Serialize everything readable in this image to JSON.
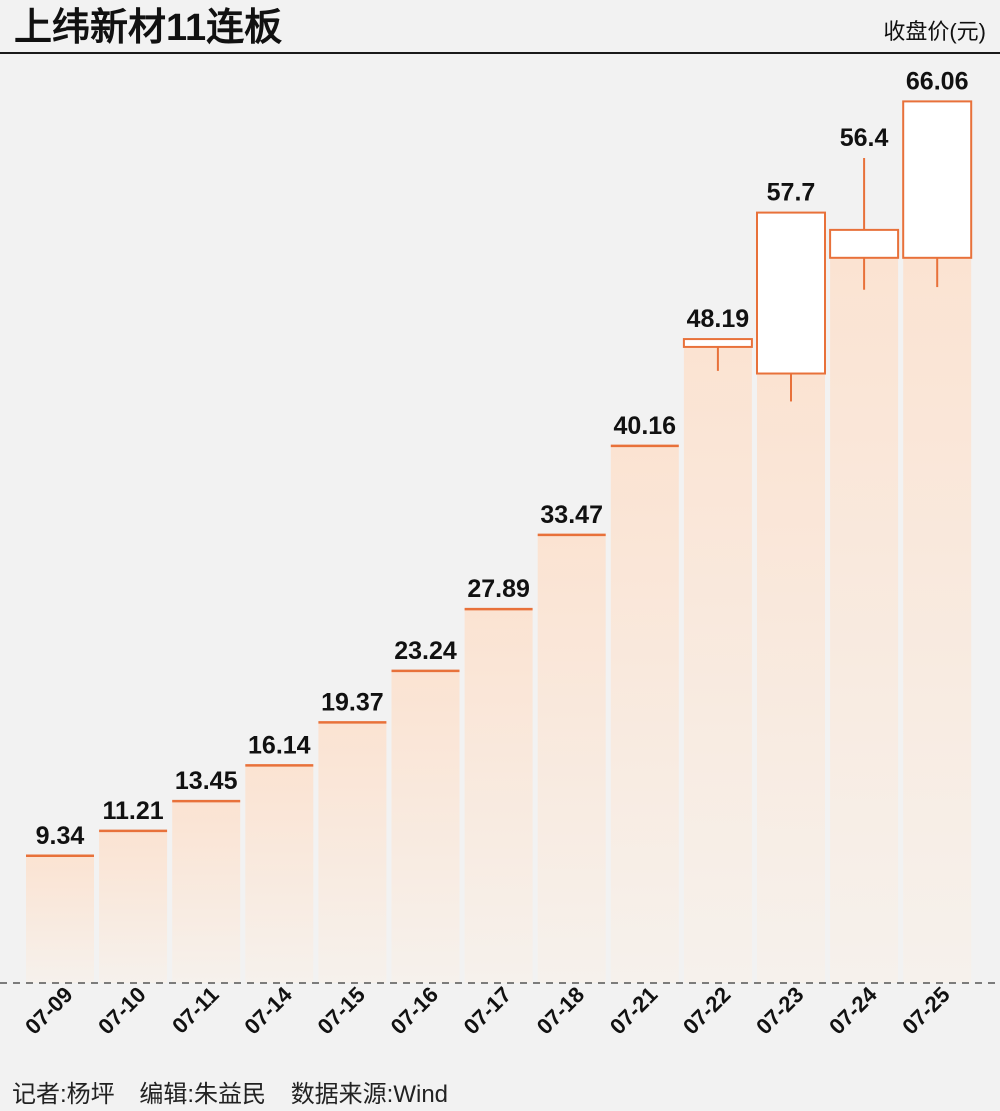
{
  "header": {
    "title": "上纬新材11连板",
    "unit": "收盘价(元)"
  },
  "footer": {
    "reporter": "记者:杨坪",
    "editor": "编辑:朱益民",
    "source": "数据来源:Wind"
  },
  "colors": {
    "accent": "#e8713a",
    "fill_top": "#fbe3d2",
    "fill_bottom": "#f6f1ec",
    "background": "#f2f2f2"
  },
  "chart_data": {
    "type": "candlestick",
    "title": "上纬新材11连板",
    "ylabel": "收盘价(元)",
    "ylim": [
      0,
      70
    ],
    "categories": [
      "07-09",
      "07-10",
      "07-11",
      "07-14",
      "07-15",
      "07-16",
      "07-17",
      "07-18",
      "07-21",
      "07-22",
      "07-23",
      "07-24",
      "07-25"
    ],
    "close": [
      9.34,
      11.21,
      13.45,
      16.14,
      19.37,
      23.24,
      27.89,
      33.47,
      40.16,
      48.19,
      57.7,
      56.4,
      66.06
    ],
    "candles": [
      {
        "date": "07-09",
        "open": 9.34,
        "high": 9.34,
        "low": 9.34,
        "close": 9.34
      },
      {
        "date": "07-10",
        "open": 11.21,
        "high": 11.21,
        "low": 11.21,
        "close": 11.21
      },
      {
        "date": "07-11",
        "open": 13.45,
        "high": 13.45,
        "low": 13.45,
        "close": 13.45
      },
      {
        "date": "07-14",
        "open": 16.14,
        "high": 16.14,
        "low": 16.14,
        "close": 16.14
      },
      {
        "date": "07-15",
        "open": 19.37,
        "high": 19.37,
        "low": 19.37,
        "close": 19.37
      },
      {
        "date": "07-16",
        "open": 23.24,
        "high": 23.24,
        "low": 23.24,
        "close": 23.24
      },
      {
        "date": "07-17",
        "open": 27.89,
        "high": 27.89,
        "low": 27.89,
        "close": 27.89
      },
      {
        "date": "07-18",
        "open": 33.47,
        "high": 33.47,
        "low": 33.47,
        "close": 33.47
      },
      {
        "date": "07-21",
        "open": 40.16,
        "high": 40.16,
        "low": 40.16,
        "close": 40.16
      },
      {
        "date": "07-22",
        "open": 47.6,
        "high": 48.19,
        "low": 45.8,
        "close": 48.19
      },
      {
        "date": "07-23",
        "open": 45.6,
        "high": 57.7,
        "low": 43.5,
        "close": 57.7
      },
      {
        "date": "07-24",
        "open": 54.3,
        "high": 61.8,
        "low": 51.9,
        "close": 56.4
      },
      {
        "date": "07-25",
        "open": 54.3,
        "high": 66.06,
        "low": 52.1,
        "close": 66.06
      }
    ],
    "value_labels": [
      "9.34",
      "11.21",
      "13.45",
      "16.14",
      "19.37",
      "23.24",
      "27.89",
      "33.47",
      "40.16",
      "48.19",
      "57.7",
      "56.4",
      "66.06"
    ]
  }
}
